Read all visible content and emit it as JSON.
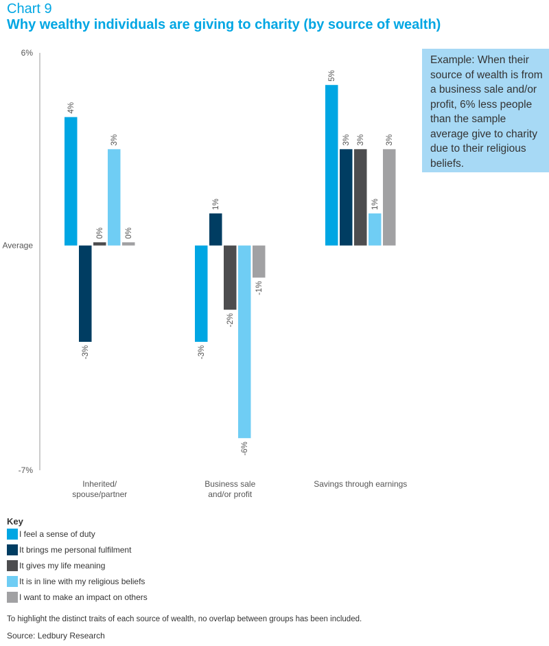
{
  "header": {
    "chart_number": "Chart 9",
    "title": "Why wealthy individuals are giving to charity (by source of wealth)"
  },
  "callout": {
    "text": "Example: When their source of wealth is from a business sale and/or profit, 6% less people than the sample average give to charity due to their religious beliefs."
  },
  "key": {
    "title": "Key"
  },
  "footnote": "To highlight the distinct traits of each source of wealth, no overlap between groups has been included.",
  "source": "Source: Ledbury Research",
  "chart_data": {
    "type": "bar",
    "categories": [
      {
        "lines": [
          "Inherited/",
          "spouse/partner"
        ]
      },
      {
        "lines": [
          "Business sale",
          "and/or profit"
        ]
      },
      {
        "lines": [
          "Savings through earnings"
        ]
      }
    ],
    "y_ticks": [
      {
        "value": 6,
        "label": "6%"
      },
      {
        "value": 0,
        "label": "Average"
      },
      {
        "value": -7,
        "label": "-7%"
      }
    ],
    "ylim": [
      -7,
      6
    ],
    "grid": false,
    "legend_position": "bottom-left",
    "series": [
      {
        "name": "I feel a sense of duty",
        "color": "#00a6e3",
        "values": [
          4,
          -3,
          5
        ],
        "labels": [
          "4%",
          "-3%",
          "5%"
        ]
      },
      {
        "name": "It brings me personal fulfilment",
        "color": "#003d62",
        "values": [
          -3,
          1,
          3
        ],
        "labels": [
          "-3%",
          "1%",
          "3%"
        ]
      },
      {
        "name": "It gives my life meaning",
        "color": "#4d4d4f",
        "values": [
          0.1,
          -2,
          3
        ],
        "labels": [
          "0%",
          "-2%",
          "3%"
        ]
      },
      {
        "name": "It is in line with my religious beliefs",
        "color": "#6fcdf4",
        "values": [
          3,
          -6,
          1
        ],
        "labels": [
          "3%",
          "-6%",
          "1%"
        ]
      },
      {
        "name": "I want to make an impact on others",
        "color": "#a1a1a3",
        "values": [
          0.1,
          -1,
          3
        ],
        "labels": [
          "0%",
          "-1%",
          "3%"
        ]
      }
    ]
  }
}
